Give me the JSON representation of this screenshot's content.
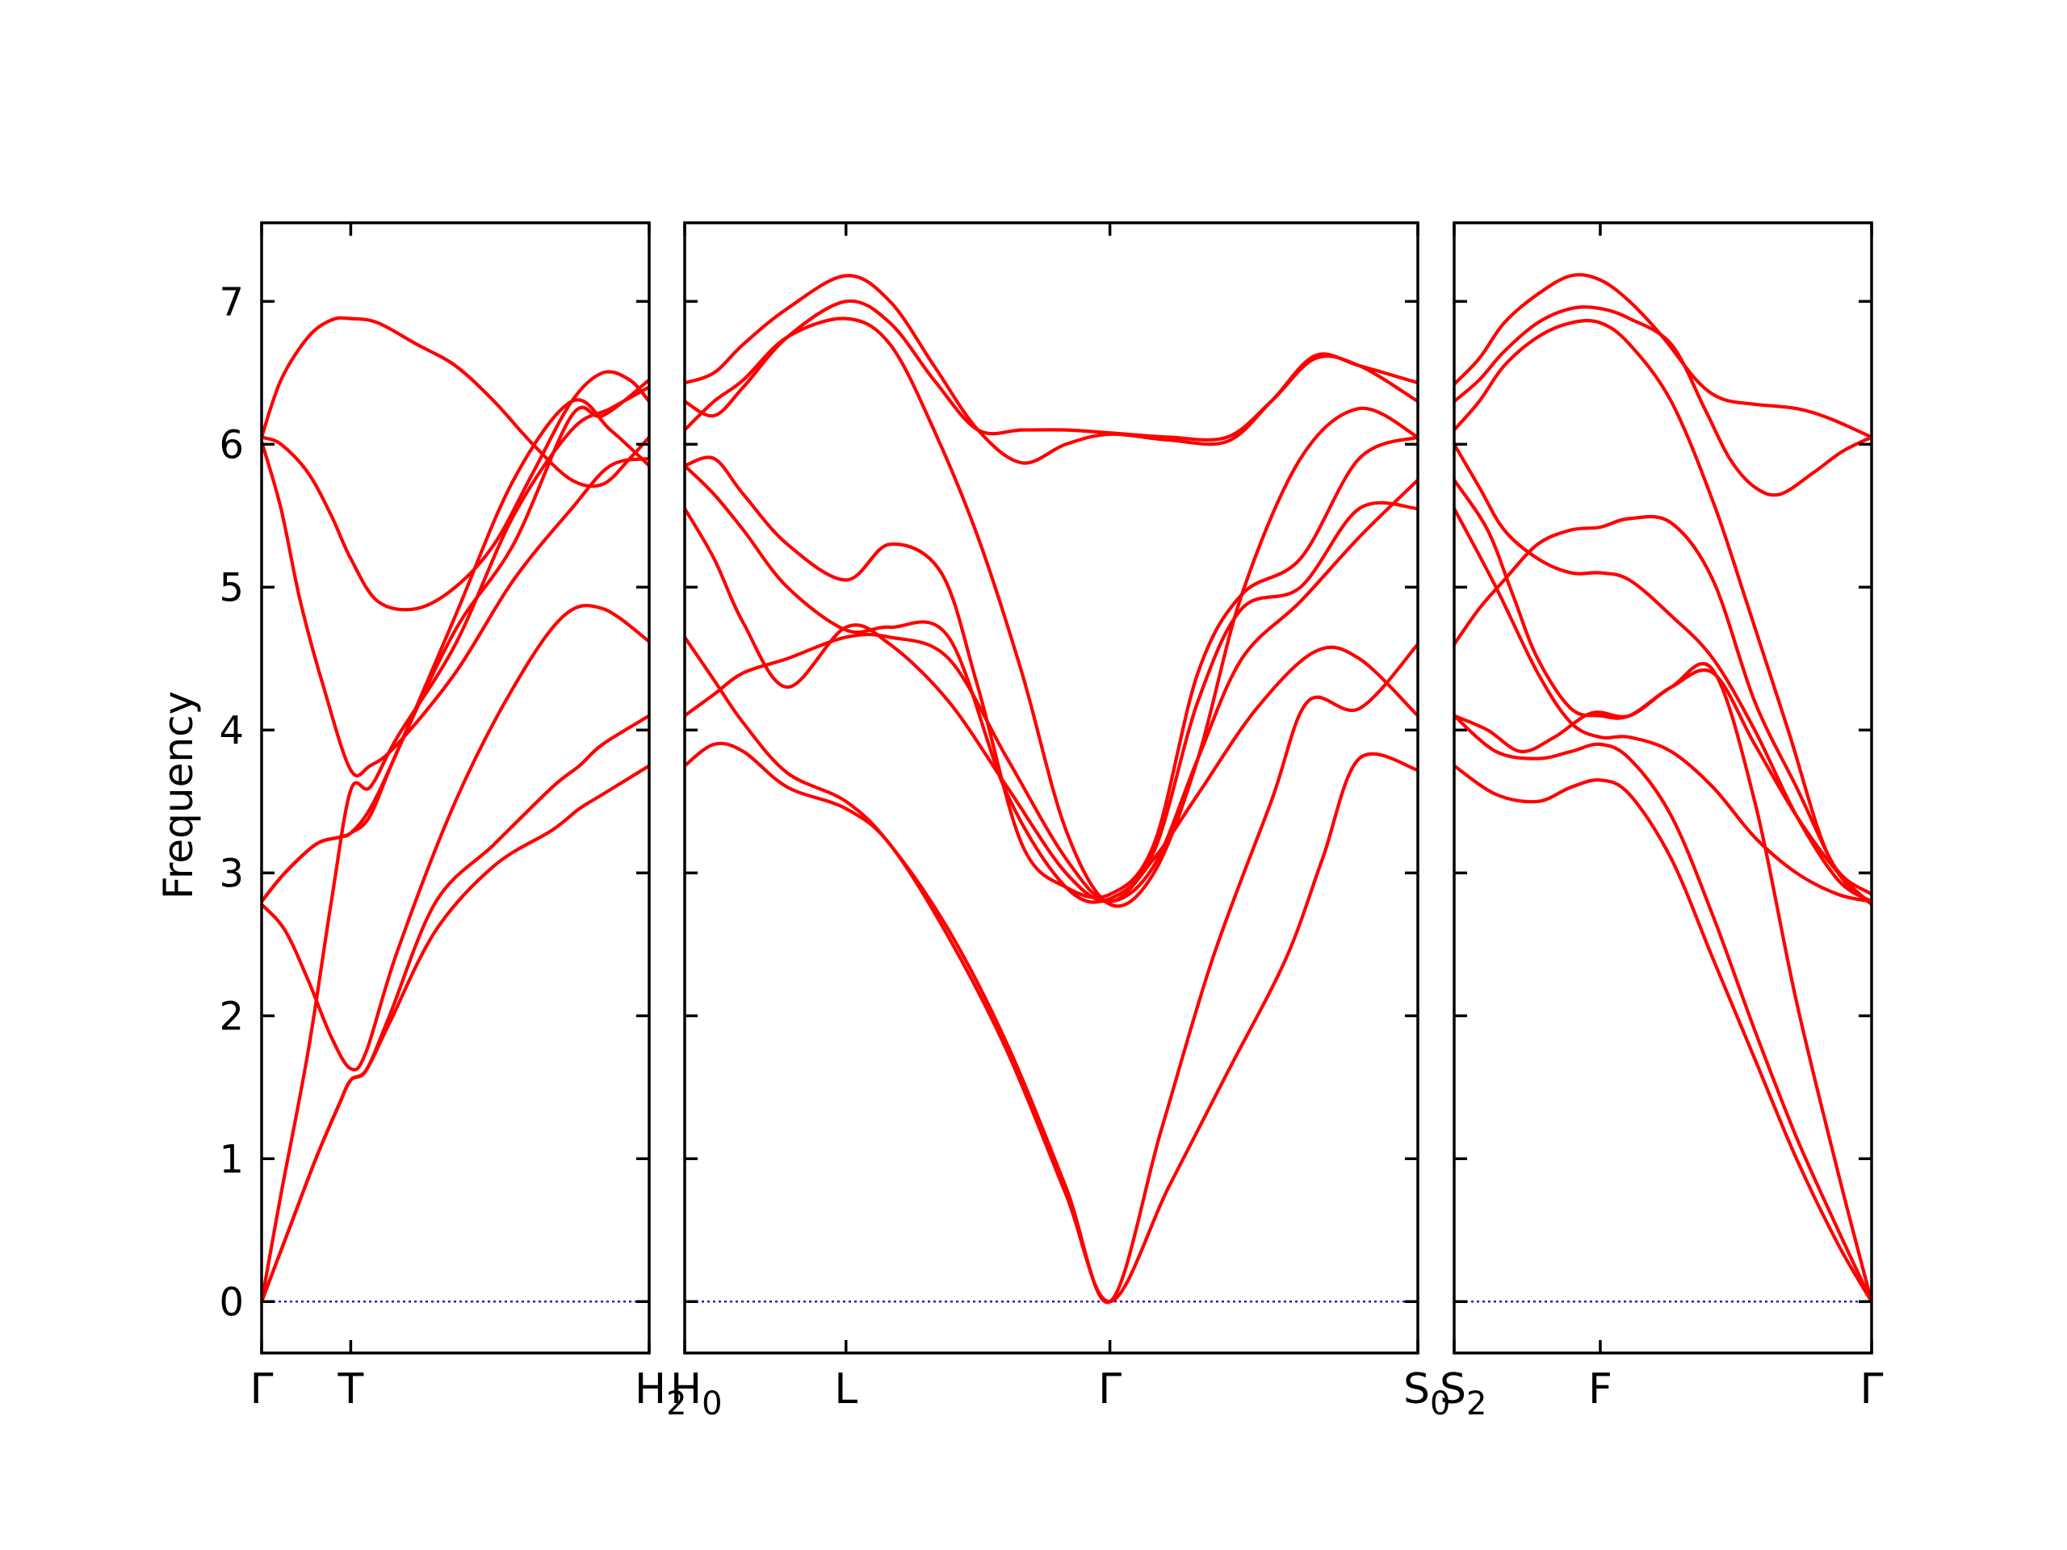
{
  "chart_data": {
    "type": "line",
    "title": "",
    "ylabel": "Frequency",
    "xlabel": "",
    "ylim": [
      -0.36,
      7.55
    ],
    "yticks": [
      0,
      1,
      2,
      3,
      4,
      5,
      6,
      7
    ],
    "grid": false,
    "legend": "none",
    "line_color": "#ff0000",
    "zero_line_color": "#0000cc",
    "panels": [
      {
        "id": "panel-1",
        "x_range": [
          0,
          1
        ],
        "ticks": [
          {
            "x": 0.0,
            "label": "Γ",
            "sub": ""
          },
          {
            "x": 0.23,
            "label": "T",
            "sub": ""
          },
          {
            "x": 1.0,
            "label": "H",
            "sub": "2"
          }
        ],
        "series": [
          {
            "x": [
              0,
              0.07,
              0.14,
              0.2,
              0.23,
              0.27,
              0.33,
              0.45,
              0.6,
              0.75,
              0.82,
              0.88,
              1.0
            ],
            "y": [
              0,
              0.5,
              1.0,
              1.38,
              1.55,
              1.62,
              1.95,
              2.6,
              3.05,
              3.3,
              3.45,
              3.55,
              3.75
            ]
          },
          {
            "x": [
              0,
              0.07,
              0.14,
              0.2,
              0.23,
              0.27,
              0.33,
              0.45,
              0.6,
              0.75,
              0.82,
              0.88,
              1.0
            ],
            "y": [
              0,
              0.5,
              1.0,
              1.38,
              1.55,
              1.62,
              2.0,
              2.8,
              3.2,
              3.6,
              3.75,
              3.9,
              4.1
            ]
          },
          {
            "x": [
              0,
              0.06,
              0.12,
              0.18,
              0.23,
              0.27,
              0.35,
              0.5,
              0.65,
              0.78,
              0.88,
              1.0
            ],
            "y": [
              2.78,
              2.6,
              2.25,
              1.85,
              1.63,
              1.75,
              2.45,
              3.5,
              4.3,
              4.8,
              4.85,
              4.62
            ]
          },
          {
            "x": [
              0,
              0.05,
              0.12,
              0.18,
              0.23,
              0.28,
              0.35,
              0.5,
              0.65,
              0.8,
              0.9,
              1.0
            ],
            "y": [
              0,
              0.75,
              1.75,
              2.8,
              3.58,
              3.6,
              3.95,
              4.6,
              5.5,
              6.1,
              6.25,
              6.4
            ]
          },
          {
            "x": [
              0,
              0.06,
              0.14,
              0.2,
              0.23,
              0.28,
              0.35,
              0.5,
              0.65,
              0.8,
              0.9,
              1.0
            ],
            "y": [
              2.8,
              3.0,
              3.2,
              3.25,
              3.28,
              3.45,
              3.85,
              4.8,
              5.75,
              6.3,
              6.1,
              5.85
            ]
          },
          {
            "x": [
              0,
              0.06,
              0.14,
              0.2,
              0.23,
              0.28,
              0.35,
              0.5,
              0.65,
              0.8,
              0.88,
              1.0
            ],
            "y": [
              2.8,
              3.0,
              3.2,
              3.25,
              3.28,
              3.4,
              3.85,
              4.7,
              5.3,
              6.2,
              6.2,
              6.45
            ]
          },
          {
            "x": [
              0,
              0.05,
              0.1,
              0.16,
              0.23,
              0.28,
              0.35,
              0.5,
              0.65,
              0.8,
              0.9,
              1.0
            ],
            "y": [
              6.02,
              5.55,
              4.9,
              4.3,
              3.72,
              3.75,
              3.9,
              4.4,
              5.05,
              5.55,
              5.85,
              5.9
            ]
          },
          {
            "x": [
              0,
              0.05,
              0.12,
              0.18,
              0.23,
              0.3,
              0.4,
              0.5,
              0.6,
              0.7,
              0.8,
              0.88,
              0.95,
              1.0
            ],
            "y": [
              6.05,
              6.45,
              6.75,
              6.87,
              6.88,
              6.85,
              6.7,
              6.55,
              6.3,
              6.0,
              5.75,
              5.72,
              5.9,
              6.05
            ]
          },
          {
            "x": [
              0,
              0.05,
              0.12,
              0.18,
              0.23,
              0.3,
              0.4,
              0.5,
              0.6,
              0.7,
              0.8,
              0.88,
              0.95,
              1.0
            ],
            "y": [
              6.05,
              6.0,
              5.8,
              5.5,
              5.2,
              4.9,
              4.85,
              5.0,
              5.3,
              5.8,
              6.3,
              6.5,
              6.45,
              6.3
            ]
          }
        ]
      },
      {
        "id": "panel-2",
        "x_range": [
          0,
          1
        ],
        "ticks": [
          {
            "x": 0.0,
            "label": "H",
            "sub": "0"
          },
          {
            "x": 0.22,
            "label": "L",
            "sub": ""
          },
          {
            "x": 0.58,
            "label": "Γ",
            "sub": ""
          },
          {
            "x": 1.0,
            "label": "S",
            "sub": "0"
          }
        ],
        "series": [
          {
            "x": [
              0,
              0.04,
              0.08,
              0.14,
              0.22,
              0.28,
              0.36,
              0.44,
              0.52,
              0.58,
              0.66,
              0.74,
              0.82,
              0.87,
              0.92,
              1.0
            ],
            "y": [
              3.75,
              3.9,
              3.85,
              3.6,
              3.45,
              3.2,
              2.55,
              1.75,
              0.75,
              0,
              0.8,
              1.6,
              2.4,
              3.1,
              3.8,
              3.72
            ]
          },
          {
            "x": [
              0,
              0.04,
              0.08,
              0.14,
              0.22,
              0.28,
              0.36,
              0.44,
              0.52,
              0.58,
              0.65,
              0.72,
              0.8,
              0.85,
              0.92,
              1.0
            ],
            "y": [
              4.65,
              4.35,
              4.05,
              3.7,
              3.5,
              3.2,
              2.6,
              1.8,
              0.8,
              0,
              1.2,
              2.4,
              3.5,
              4.2,
              4.15,
              4.6
            ]
          },
          {
            "x": [
              0,
              0.04,
              0.08,
              0.14,
              0.22,
              0.28,
              0.36,
              0.44,
              0.52,
              0.58,
              0.64,
              0.7,
              0.78,
              0.86,
              0.92,
              1.0
            ],
            "y": [
              4.1,
              4.25,
              4.4,
              4.5,
              4.65,
              4.65,
              4.5,
              3.8,
              3.1,
              2.8,
              3.1,
              3.55,
              4.15,
              4.55,
              4.5,
              4.1
            ]
          },
          {
            "x": [
              0,
              0.04,
              0.08,
              0.14,
              0.22,
              0.28,
              0.36,
              0.44,
              0.52,
              0.58,
              0.64,
              0.7,
              0.76,
              0.84,
              0.92,
              1.0
            ],
            "y": [
              5.55,
              5.2,
              4.75,
              4.3,
              4.72,
              4.6,
              4.2,
              3.6,
              3.0,
              2.8,
              3.05,
              3.8,
              4.5,
              4.9,
              5.35,
              5.75
            ]
          },
          {
            "x": [
              0,
              0.04,
              0.08,
              0.14,
              0.22,
              0.28,
              0.36,
              0.44,
              0.52,
              0.58,
              0.64,
              0.7,
              0.76,
              0.84,
              0.92,
              1.0
            ],
            "y": [
              5.85,
              5.65,
              5.4,
              5.0,
              4.7,
              4.72,
              4.65,
              3.55,
              2.9,
              2.82,
              3.15,
              4.2,
              4.85,
              5.0,
              5.55,
              5.55
            ]
          },
          {
            "x": [
              0,
              0.04,
              0.08,
              0.14,
              0.22,
              0.28,
              0.35,
              0.4,
              0.46,
              0.52,
              0.58,
              0.64,
              0.7,
              0.76,
              0.84,
              0.92,
              1.0
            ],
            "y": [
              5.85,
              5.9,
              5.65,
              5.3,
              5.05,
              5.3,
              5.1,
              4.3,
              3.2,
              2.9,
              2.85,
              3.2,
              4.4,
              4.95,
              5.2,
              5.9,
              6.05
            ]
          },
          {
            "x": [
              0,
              0.04,
              0.08,
              0.14,
              0.22,
              0.28,
              0.34,
              0.4,
              0.46,
              0.52,
              0.58,
              0.64,
              0.7,
              0.76,
              0.84,
              0.92,
              1.0
            ],
            "y": [
              6.1,
              6.3,
              6.45,
              6.75,
              6.88,
              6.7,
              6.1,
              5.35,
              4.4,
              3.3,
              2.78,
              3.0,
              3.8,
              4.95,
              5.9,
              6.25,
              6.05
            ]
          },
          {
            "x": [
              0,
              0.04,
              0.08,
              0.14,
              0.22,
              0.28,
              0.34,
              0.4,
              0.46,
              0.52,
              0.58,
              0.66,
              0.74,
              0.8,
              0.86,
              0.92,
              1.0
            ],
            "y": [
              6.3,
              6.2,
              6.4,
              6.75,
              7.0,
              6.85,
              6.45,
              6.1,
              6.1,
              6.1,
              6.08,
              6.05,
              6.05,
              6.3,
              6.6,
              6.55,
              6.3
            ]
          },
          {
            "x": [
              0,
              0.04,
              0.08,
              0.14,
              0.22,
              0.28,
              0.34,
              0.4,
              0.46,
              0.52,
              0.58,
              0.66,
              0.74,
              0.8,
              0.86,
              0.92,
              1.0
            ],
            "y": [
              6.43,
              6.5,
              6.7,
              6.95,
              7.18,
              7.0,
              6.55,
              6.1,
              5.87,
              6.0,
              6.07,
              6.03,
              6.02,
              6.3,
              6.62,
              6.55,
              6.43
            ]
          }
        ]
      },
      {
        "id": "panel-3",
        "x_range": [
          0,
          1
        ],
        "ticks": [
          {
            "x": 0.0,
            "label": "S",
            "sub": "2"
          },
          {
            "x": 0.35,
            "label": "F",
            "sub": ""
          },
          {
            "x": 1.0,
            "label": "Γ",
            "sub": ""
          }
        ],
        "series": [
          {
            "x": [
              0,
              0.1,
              0.2,
              0.28,
              0.35,
              0.42,
              0.52,
              0.62,
              0.72,
              0.82,
              0.92,
              1.0
            ],
            "y": [
              3.75,
              3.55,
              3.5,
              3.6,
              3.65,
              3.55,
              3.1,
              2.4,
              1.7,
              1.0,
              0.4,
              0
            ]
          },
          {
            "x": [
              0,
              0.1,
              0.2,
              0.28,
              0.35,
              0.42,
              0.52,
              0.62,
              0.72,
              0.82,
              0.92,
              1.0
            ],
            "y": [
              4.1,
              3.85,
              3.8,
              3.85,
              3.9,
              3.8,
              3.4,
              2.7,
              1.9,
              1.15,
              0.5,
              0
            ]
          },
          {
            "x": [
              0,
              0.1,
              0.2,
              0.28,
              0.35,
              0.42,
              0.52,
              0.62,
              0.72,
              0.82,
              0.92,
              1.0
            ],
            "y": [
              5.55,
              5.0,
              4.4,
              4.05,
              3.95,
              3.95,
              3.85,
              3.6,
              3.25,
              3.0,
              2.85,
              2.8
            ]
          },
          {
            "x": [
              0,
              0.08,
              0.16,
              0.24,
              0.33,
              0.42,
              0.52,
              0.62,
              0.72,
              0.82,
              0.92,
              1.0
            ],
            "y": [
              4.1,
              4.0,
              3.85,
              3.95,
              4.12,
              4.1,
              4.3,
              4.42,
              3.5,
              2.1,
              0.9,
              0
            ]
          },
          {
            "x": [
              0,
              0.08,
              0.14,
              0.2,
              0.28,
              0.35,
              0.42,
              0.52,
              0.62,
              0.72,
              0.82,
              0.92,
              1.0
            ],
            "y": [
              5.75,
              5.4,
              4.95,
              4.5,
              4.15,
              4.1,
              4.1,
              4.3,
              4.4,
              3.9,
              3.4,
              3.0,
              2.78
            ]
          },
          {
            "x": [
              0,
              0.06,
              0.12,
              0.2,
              0.28,
              0.35,
              0.42,
              0.52,
              0.62,
              0.72,
              0.82,
              0.92,
              1.0
            ],
            "y": [
              4.6,
              4.85,
              5.05,
              5.3,
              5.4,
              5.42,
              5.48,
              5.45,
              5.05,
              4.2,
              3.6,
              3.0,
              2.78
            ]
          },
          {
            "x": [
              0,
              0.06,
              0.12,
              0.2,
              0.28,
              0.35,
              0.42,
              0.52,
              0.62,
              0.72,
              0.82,
              0.92,
              1.0
            ],
            "y": [
              6.0,
              5.7,
              5.4,
              5.2,
              5.1,
              5.1,
              5.05,
              4.8,
              4.5,
              4.0,
              3.4,
              2.95,
              2.8
            ]
          },
          {
            "x": [
              0,
              0.06,
              0.12,
              0.2,
              0.28,
              0.35,
              0.42,
              0.52,
              0.62,
              0.7,
              0.8,
              0.9,
              1.0
            ],
            "y": [
              6.1,
              6.3,
              6.55,
              6.75,
              6.85,
              6.85,
              6.7,
              6.3,
              5.6,
              4.9,
              4.0,
              3.1,
              2.85
            ]
          },
          {
            "x": [
              0,
              0.06,
              0.12,
              0.2,
              0.28,
              0.35,
              0.42,
              0.52,
              0.6,
              0.66,
              0.72,
              0.78,
              0.86,
              0.93,
              1.0
            ],
            "y": [
              6.3,
              6.45,
              6.65,
              6.85,
              6.95,
              6.95,
              6.88,
              6.7,
              6.25,
              5.9,
              5.7,
              5.65,
              5.8,
              5.95,
              6.05
            ]
          },
          {
            "x": [
              0,
              0.06,
              0.12,
              0.2,
              0.28,
              0.35,
              0.42,
              0.5,
              0.58,
              0.64,
              0.72,
              0.82,
              0.9,
              1.0
            ],
            "y": [
              6.42,
              6.6,
              6.85,
              7.05,
              7.18,
              7.15,
              7.0,
              6.75,
              6.45,
              6.32,
              6.28,
              6.25,
              6.18,
              6.05
            ]
          }
        ]
      }
    ]
  }
}
